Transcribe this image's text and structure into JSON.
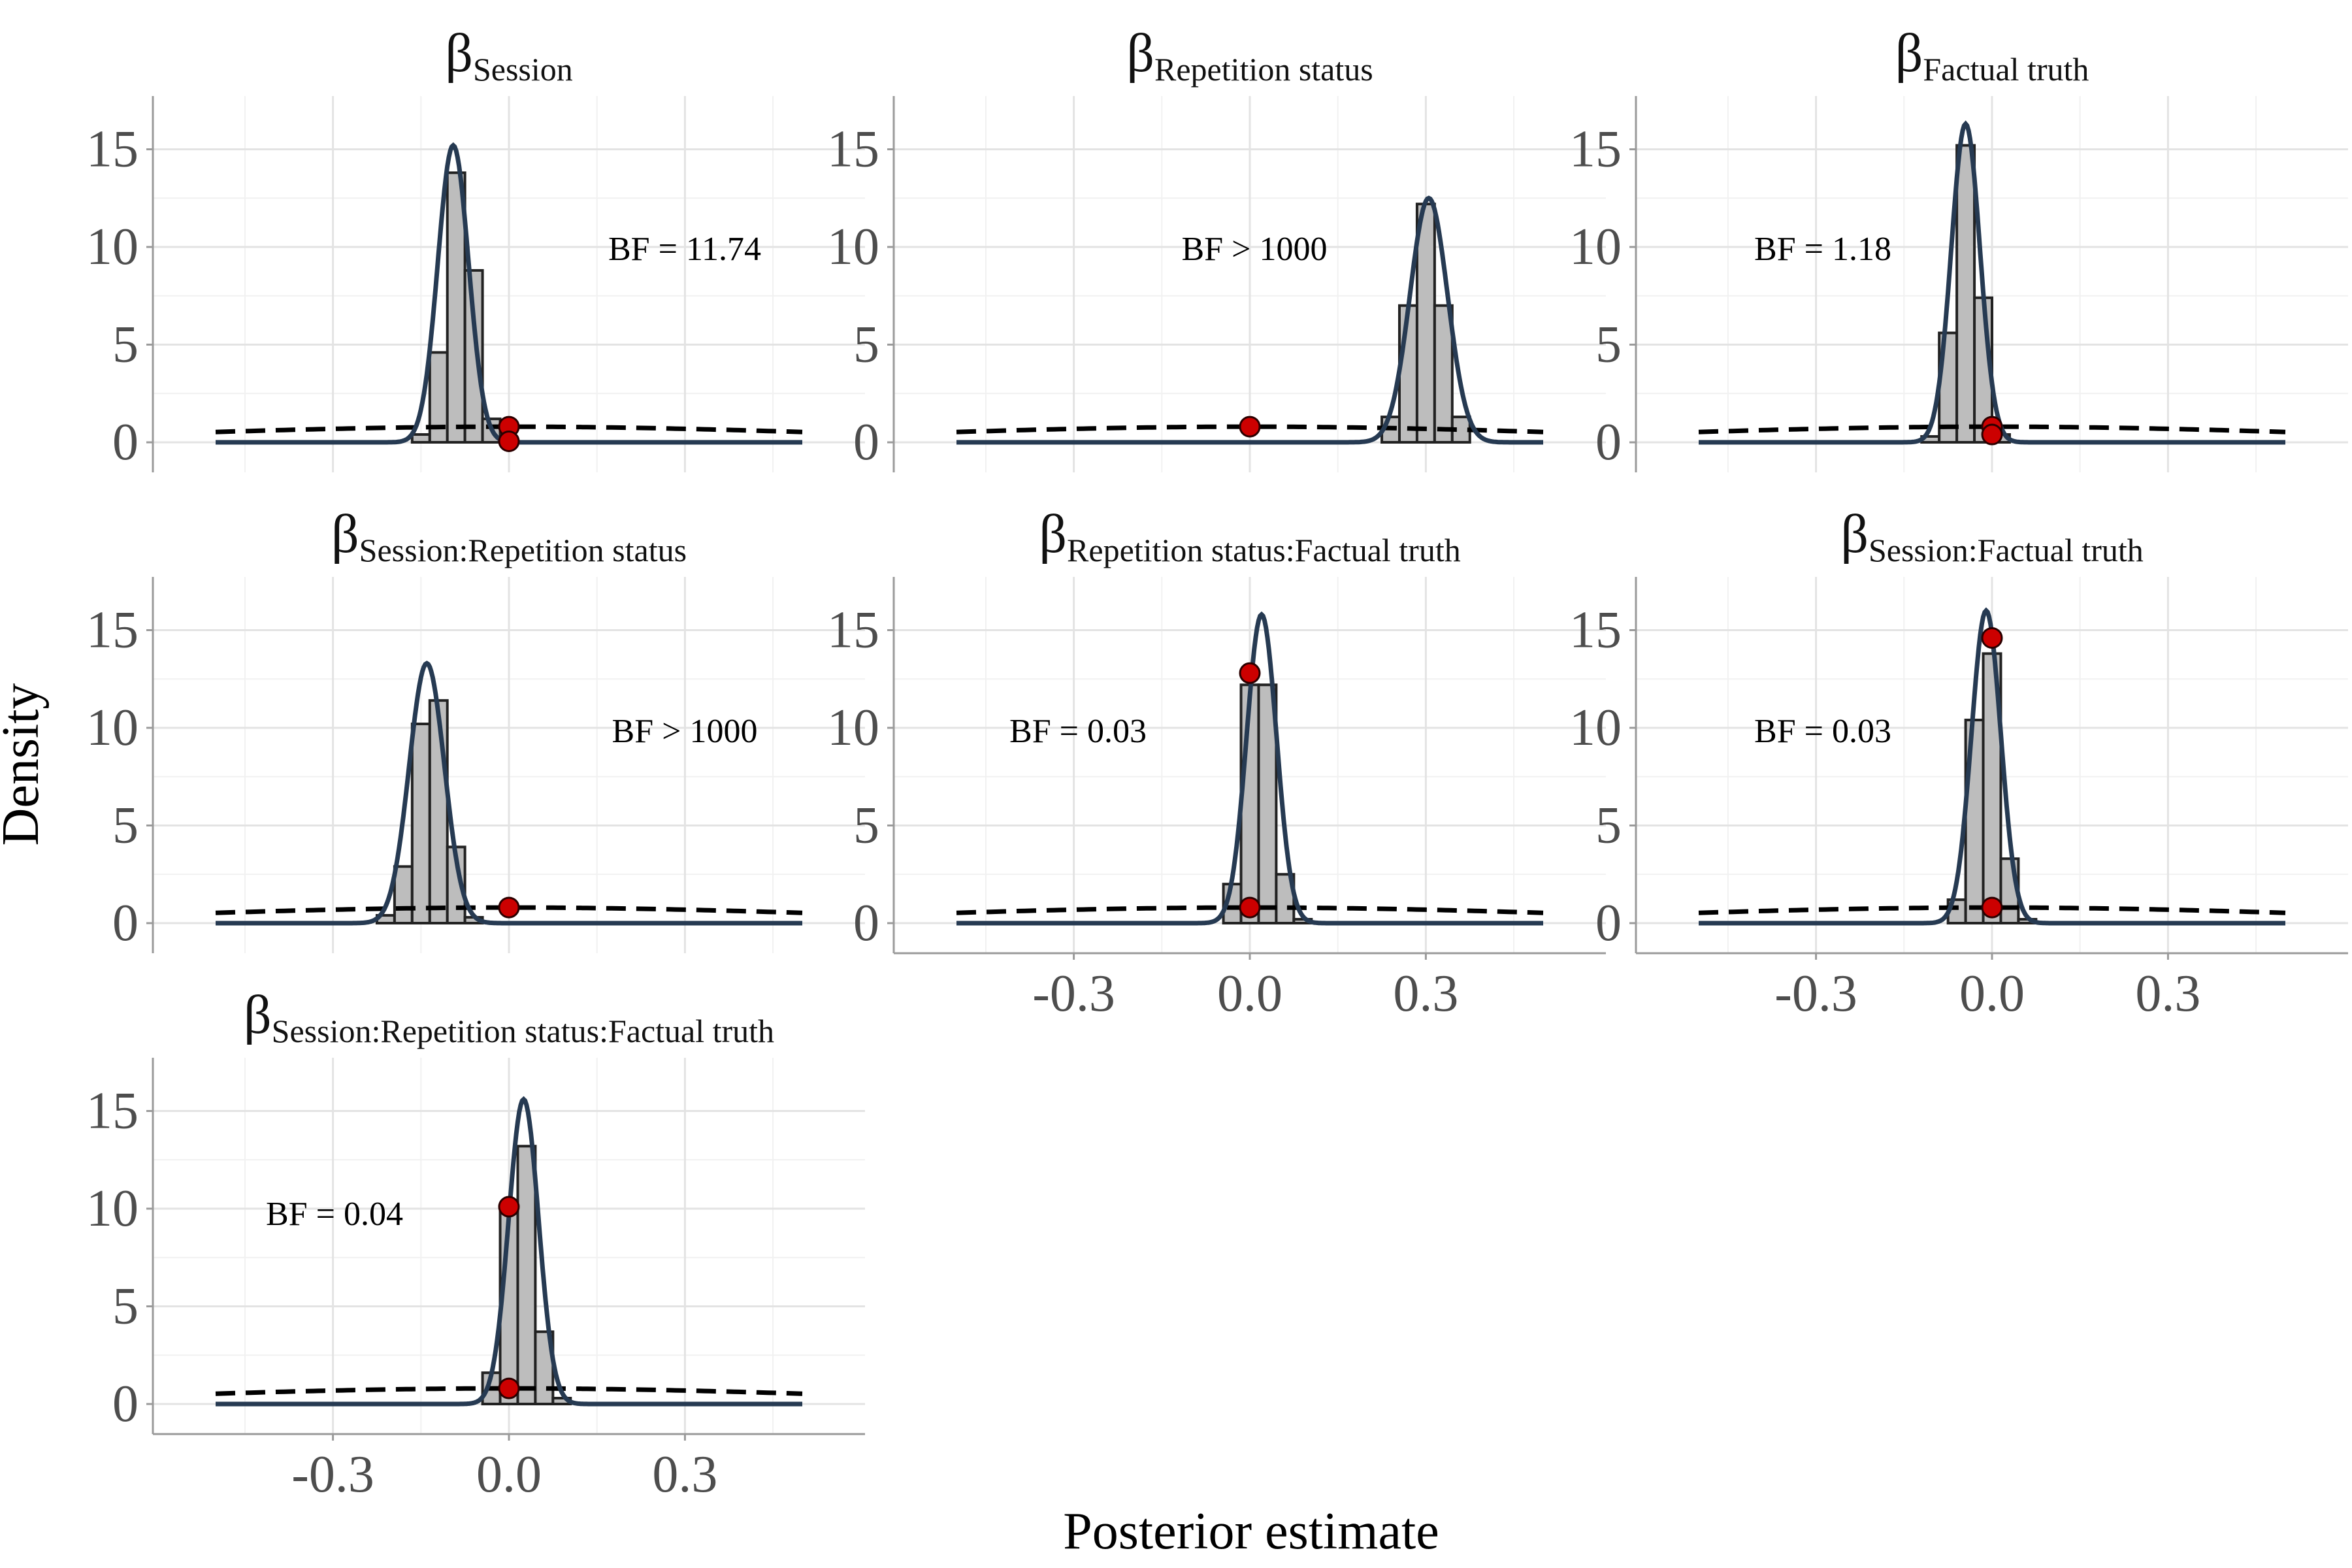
{
  "figure": {
    "ylabel": "Density",
    "xlabel": "Posterior estimate",
    "beta_symbol": "β",
    "colors": {
      "histogram_fill": "#bdbdbd",
      "histogram_stroke": "#222222",
      "posterior_line": "#263a52",
      "prior_line": "#000000",
      "point_fill": "#cc0000",
      "point_stroke": "#2b0000",
      "grid_major": "#e3e3e3",
      "grid_minor": "#f1f1f1",
      "axis_line": "#9a9a9a"
    }
  },
  "chart_data": [
    {
      "type": "histogram+density",
      "subscript": "Session",
      "bf_label": "BF = 11.74",
      "xlim": [
        -0.5,
        0.5
      ],
      "ylim": [
        0,
        17
      ],
      "y_ticks": [
        0,
        5,
        10,
        15
      ],
      "x_ticks": [
        -0.3,
        0.0,
        0.3
      ],
      "x_tick_labels": [
        "-0.3",
        "0.0",
        "0.3"
      ],
      "show_x_axis": false,
      "bins": [
        {
          "x": -0.15,
          "h": 0.4
        },
        {
          "x": -0.12,
          "h": 4.6
        },
        {
          "x": -0.09,
          "h": 13.8
        },
        {
          "x": -0.06,
          "h": 8.8
        },
        {
          "x": -0.03,
          "h": 1.2
        }
      ],
      "posterior": {
        "mean": -0.095,
        "sd": 0.0262,
        "peak": 15.2
      },
      "prior_peak": 0.8,
      "points": [
        {
          "x": 0.0,
          "y": 0.8
        },
        {
          "x": 0.0,
          "y": 0.05
        }
      ]
    },
    {
      "type": "histogram+density",
      "subscript": "Repetition status",
      "bf_label": "BF > 1000",
      "xlim": [
        -0.5,
        0.5
      ],
      "ylim": [
        0,
        17
      ],
      "y_ticks": [
        0,
        5,
        10,
        15
      ],
      "x_ticks": [
        -0.3,
        0.0,
        0.3
      ],
      "x_tick_labels": [
        "-0.3",
        "0.0",
        "0.3"
      ],
      "show_x_axis": false,
      "bins": [
        {
          "x": 0.24,
          "h": 1.3
        },
        {
          "x": 0.27,
          "h": 7.0
        },
        {
          "x": 0.3,
          "h": 12.2
        },
        {
          "x": 0.33,
          "h": 7.0
        },
        {
          "x": 0.36,
          "h": 1.3
        }
      ],
      "posterior": {
        "mean": 0.305,
        "sd": 0.032,
        "peak": 12.5
      },
      "prior_peak": 0.8,
      "points": [
        {
          "x": 0.0,
          "y": 0.8
        }
      ]
    },
    {
      "type": "histogram+density",
      "subscript": "Factual truth",
      "bf_label": "BF = 1.18",
      "xlim": [
        -0.5,
        0.5
      ],
      "ylim": [
        0,
        17
      ],
      "y_ticks": [
        0,
        5,
        10,
        15
      ],
      "x_ticks": [
        -0.3,
        0.0,
        0.3
      ],
      "x_tick_labels": [
        "-0.3",
        "0.0",
        "0.3"
      ],
      "show_x_axis": false,
      "bins": [
        {
          "x": -0.105,
          "h": 0.3
        },
        {
          "x": -0.075,
          "h": 5.6
        },
        {
          "x": -0.045,
          "h": 15.2
        },
        {
          "x": -0.015,
          "h": 7.4
        },
        {
          "x": 0.015,
          "h": 0.4
        }
      ],
      "posterior": {
        "mean": -0.045,
        "sd": 0.0245,
        "peak": 16.3
      },
      "prior_peak": 0.8,
      "points": [
        {
          "x": 0.0,
          "y": 0.8
        },
        {
          "x": 0.0,
          "y": 0.4
        }
      ]
    },
    {
      "type": "histogram+density",
      "subscript": "Session:Repetition status",
      "bf_label": "BF > 1000",
      "xlim": [
        -0.5,
        0.5
      ],
      "ylim": [
        0,
        17
      ],
      "y_ticks": [
        0,
        5,
        10,
        15
      ],
      "x_ticks": [
        -0.3,
        0.0,
        0.3
      ],
      "x_tick_labels": [
        "-0.3",
        "0.0",
        "0.3"
      ],
      "show_x_axis": false,
      "bins": [
        {
          "x": -0.21,
          "h": 0.4
        },
        {
          "x": -0.18,
          "h": 2.9
        },
        {
          "x": -0.15,
          "h": 10.2
        },
        {
          "x": -0.12,
          "h": 11.4
        },
        {
          "x": -0.09,
          "h": 3.9
        },
        {
          "x": -0.06,
          "h": 0.3
        }
      ],
      "posterior": {
        "mean": -0.14,
        "sd": 0.03,
        "peak": 13.3
      },
      "prior_peak": 0.8,
      "points": [
        {
          "x": 0.0,
          "y": 0.8
        }
      ]
    },
    {
      "type": "histogram+density",
      "subscript": "Repetition status:Factual truth",
      "bf_label": "BF = 0.03",
      "xlim": [
        -0.5,
        0.5
      ],
      "ylim": [
        0,
        17
      ],
      "y_ticks": [
        0,
        5,
        10,
        15
      ],
      "x_ticks": [
        -0.3,
        0.0,
        0.3
      ],
      "x_tick_labels": [
        "-0.3",
        "0.0",
        "0.3"
      ],
      "show_x_axis": true,
      "bins": [
        {
          "x": -0.03,
          "h": 2.0
        },
        {
          "x": 0.0,
          "h": 12.2
        },
        {
          "x": 0.03,
          "h": 12.2
        },
        {
          "x": 0.06,
          "h": 2.5
        },
        {
          "x": 0.09,
          "h": 0.2
        }
      ],
      "posterior": {
        "mean": 0.02,
        "sd": 0.0255,
        "peak": 15.8
      },
      "prior_peak": 0.8,
      "points": [
        {
          "x": 0.0,
          "y": 12.8
        },
        {
          "x": 0.0,
          "y": 0.8
        }
      ]
    },
    {
      "type": "histogram+density",
      "subscript": "Session:Factual truth",
      "bf_label": "BF = 0.03",
      "xlim": [
        -0.5,
        0.5
      ],
      "ylim": [
        0,
        17
      ],
      "y_ticks": [
        0,
        5,
        10,
        15
      ],
      "x_ticks": [
        -0.3,
        0.0,
        0.3
      ],
      "x_tick_labels": [
        "-0.3",
        "0.0",
        "0.3"
      ],
      "show_x_axis": true,
      "bins": [
        {
          "x": -0.06,
          "h": 1.2
        },
        {
          "x": -0.03,
          "h": 10.4
        },
        {
          "x": 0.0,
          "h": 13.8
        },
        {
          "x": 0.03,
          "h": 3.3
        },
        {
          "x": 0.06,
          "h": 0.2
        }
      ],
      "posterior": {
        "mean": -0.01,
        "sd": 0.025,
        "peak": 16.0
      },
      "prior_peak": 0.8,
      "points": [
        {
          "x": 0.0,
          "y": 14.6
        },
        {
          "x": 0.0,
          "y": 0.8
        }
      ]
    },
    {
      "type": "histogram+density",
      "subscript": "Session:Repetition status:Factual truth",
      "bf_label": "BF = 0.04",
      "xlim": [
        -0.5,
        0.5
      ],
      "ylim": [
        0,
        17
      ],
      "y_ticks": [
        0,
        5,
        10,
        15
      ],
      "x_ticks": [
        -0.3,
        0.0,
        0.3
      ],
      "x_tick_labels": [
        "-0.3",
        "0.0",
        "0.3"
      ],
      "show_x_axis": true,
      "bins": [
        {
          "x": -0.03,
          "h": 1.6
        },
        {
          "x": 0.0,
          "h": 10.0
        },
        {
          "x": 0.03,
          "h": 13.2
        },
        {
          "x": 0.06,
          "h": 3.7
        },
        {
          "x": 0.09,
          "h": 0.3
        }
      ],
      "posterior": {
        "mean": 0.025,
        "sd": 0.0255,
        "peak": 15.6
      },
      "prior_peak": 0.8,
      "points": [
        {
          "x": 0.0,
          "y": 10.1
        },
        {
          "x": 0.0,
          "y": 0.8
        }
      ]
    }
  ]
}
